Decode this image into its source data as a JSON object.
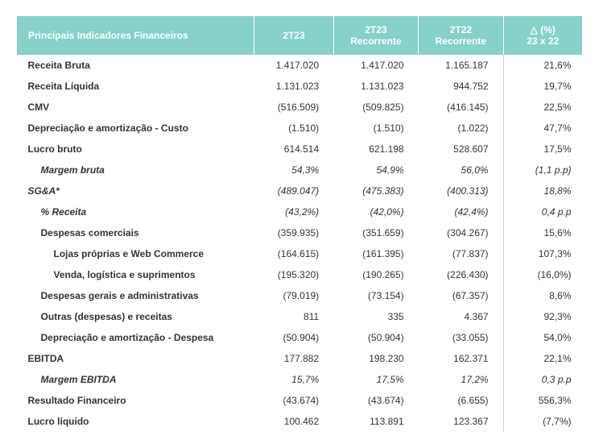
{
  "header": {
    "col0": "Principais Indicadores Financeiros",
    "col1": "2T23",
    "col2a": "2T23",
    "col2b": "Recorrente",
    "col3a": "2T22",
    "col3b": "Recorrente",
    "col4a": "△ (%)",
    "col4b": "23 x 22",
    "bg": "#86d1c9",
    "fg": "#ffffff"
  },
  "rows": [
    {
      "label": "Receita Bruta",
      "c1": "1.417.020",
      "c2": "1.417.020",
      "c3": "1.165.187",
      "c4": "21,6%",
      "indent": 0,
      "italic": false
    },
    {
      "label": "Receita Líquida",
      "c1": "1.131.023",
      "c2": "1.131.023",
      "c3": "944.752",
      "c4": "19,7%",
      "indent": 0,
      "italic": false
    },
    {
      "label": "CMV",
      "c1": "(516.509)",
      "c2": "(509.825)",
      "c3": "(416.145)",
      "c4": "22,5%",
      "indent": 0,
      "italic": false
    },
    {
      "label": "Depreciação e amortização - Custo",
      "c1": "(1.510)",
      "c2": "(1.510)",
      "c3": "(1.022)",
      "c4": "47,7%",
      "indent": 0,
      "italic": false
    },
    {
      "label": "Lucro bruto",
      "c1": "614.514",
      "c2": "621.198",
      "c3": "528.607",
      "c4": "17,5%",
      "indent": 0,
      "italic": false
    },
    {
      "label": "Margem bruta",
      "c1": "54,3%",
      "c2": "54,9%",
      "c3": "56,0%",
      "c4": "(1,1 p.p)",
      "indent": 1,
      "italic": true
    },
    {
      "label": "SG&A*",
      "c1": "(489.047)",
      "c2": "(475.383)",
      "c3": "(400.313)",
      "c4": "18,8%",
      "indent": 0,
      "italic": true
    },
    {
      "label": "% Receita",
      "c1": "(43,2%)",
      "c2": "(42,0%)",
      "c3": "(42,4%)",
      "c4": "0,4 p.p",
      "indent": 1,
      "italic": true
    },
    {
      "label": "Despesas comerciais",
      "c1": "(359.935)",
      "c2": "(351.659)",
      "c3": "(304.267)",
      "c4": "15,6%",
      "indent": 1,
      "italic": false
    },
    {
      "label": "Lojas próprias e Web Commerce",
      "c1": "(164.615)",
      "c2": "(161.395)",
      "c3": "(77.837)",
      "c4": "107,3%",
      "indent": 2,
      "italic": false
    },
    {
      "label": "Venda, logística e suprimentos",
      "c1": "(195.320)",
      "c2": "(190.265)",
      "c3": "(226.430)",
      "c4": "(16,0%)",
      "indent": 2,
      "italic": false
    },
    {
      "label": "Despesas gerais e administrativas",
      "c1": "(79.019)",
      "c2": "(73.154)",
      "c3": "(67.357)",
      "c4": "8,6%",
      "indent": 1,
      "italic": false
    },
    {
      "label": "Outras (despesas) e receitas",
      "c1": "811",
      "c2": "335",
      "c3": "4.367",
      "c4": "92,3%",
      "indent": 1,
      "italic": false
    },
    {
      "label": "Depreciação e amortização - Despesa",
      "c1": "(50.904)",
      "c2": "(50.904)",
      "c3": "(33.055)",
      "c4": "54,0%",
      "indent": 1,
      "italic": false
    },
    {
      "label": "EBITDA",
      "c1": "177.882",
      "c2": "198.230",
      "c3": "162.371",
      "c4": "22,1%",
      "indent": 0,
      "italic": false
    },
    {
      "label": "Margem EBITDA",
      "c1": "15,7%",
      "c2": "17,5%",
      "c3": "17,2%",
      "c4": "0,3 p.p",
      "indent": 1,
      "italic": true
    },
    {
      "label": "Resultado Financeiro",
      "c1": "(43.674)",
      "c2": "(43.674)",
      "c3": "(6.655)",
      "c4": "556,3%",
      "indent": 0,
      "italic": false
    },
    {
      "label": "Lucro líquido",
      "c1": "100.462",
      "c2": "113.891",
      "c3": "123.367",
      "c4": "(7,7%)",
      "indent": 0,
      "italic": false
    }
  ],
  "col_widths": {
    "c0": "42%",
    "c1": "14%",
    "c2": "15%",
    "c3": "15%",
    "c4": "14%"
  }
}
